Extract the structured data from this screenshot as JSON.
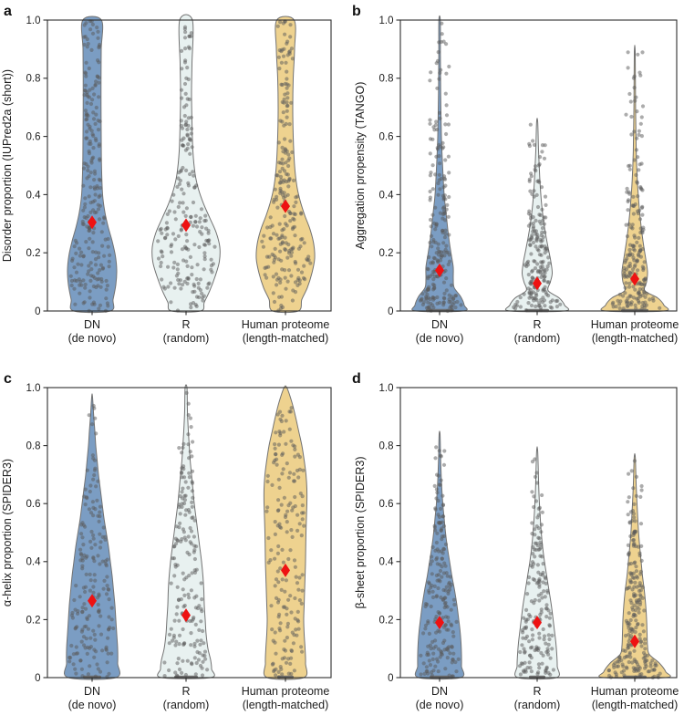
{
  "figure": {
    "background": "#ffffff",
    "accent_colors": {
      "mean_marker": "#ee1212",
      "point": "#5a5a5a",
      "violin_outline": "#737373",
      "axis": "#2e2e2e"
    }
  },
  "chart_data": [
    {
      "type": "violin",
      "panel": "a",
      "ylabel": "Disorder proportion (IUPred2a (short))",
      "ylim": [
        0,
        1.0
      ],
      "yticks": [
        0,
        0.2,
        0.4,
        0.6,
        0.8,
        1.0
      ],
      "ytick_labels": [
        "0",
        "0.2",
        "0.4",
        "0.6",
        "0.8",
        "1.0"
      ],
      "grid": false,
      "legend": "none",
      "categories": [
        [
          "DN",
          "(de novo)"
        ],
        [
          "R",
          "(random)"
        ],
        [
          "Human proteome",
          "(length-matched)"
        ]
      ],
      "series": [
        {
          "name": "DN (de novo)",
          "color": "#7b9dc3",
          "mean": 0.305,
          "min": 0,
          "max": 1.0,
          "n_points": 235,
          "zero_bar_halfwidth": 0,
          "jitter_min": 5,
          "density": [
            [
              0,
              20
            ],
            [
              0.04,
              23
            ],
            [
              0.09,
              26
            ],
            [
              0.14,
              27
            ],
            [
              0.19,
              25.5
            ],
            [
              0.24,
              22
            ],
            [
              0.29,
              17.5
            ],
            [
              0.34,
              14
            ],
            [
              0.4,
              11.5
            ],
            [
              0.5,
              10.3
            ],
            [
              0.6,
              10
            ],
            [
              0.7,
              9.8
            ],
            [
              0.8,
              9.8
            ],
            [
              0.9,
              10
            ],
            [
              1.0,
              10.2
            ]
          ]
        },
        {
          "name": "R (random)",
          "color": "#e8f1f0",
          "mean": 0.295,
          "min": 0,
          "max": 1.0,
          "n_points": 215,
          "zero_bar_halfwidth": 0,
          "jitter_min": 6,
          "density": [
            [
              0,
              16
            ],
            [
              0.03,
              20
            ],
            [
              0.07,
              26
            ],
            [
              0.12,
              32
            ],
            [
              0.17,
              36.5
            ],
            [
              0.22,
              37
            ],
            [
              0.27,
              33
            ],
            [
              0.32,
              26
            ],
            [
              0.37,
              19
            ],
            [
              0.42,
              13.5
            ],
            [
              0.47,
              10
            ],
            [
              0.55,
              7.5
            ],
            [
              0.65,
              6.5
            ],
            [
              0.75,
              6
            ],
            [
              0.85,
              6.5
            ],
            [
              1.0,
              7
            ]
          ]
        },
        {
          "name": "Human proteome (length-matched)",
          "color": "#eed28f",
          "mean": 0.36,
          "min": 0,
          "max": 1.0,
          "n_points": 225,
          "zero_bar_halfwidth": 0,
          "jitter_min": 5,
          "density": [
            [
              0,
              14
            ],
            [
              0.04,
              18
            ],
            [
              0.08,
              24
            ],
            [
              0.13,
              29
            ],
            [
              0.18,
              32
            ],
            [
              0.23,
              31
            ],
            [
              0.28,
              27
            ],
            [
              0.33,
              21
            ],
            [
              0.38,
              16
            ],
            [
              0.43,
              12.5
            ],
            [
              0.5,
              10
            ],
            [
              0.6,
              8.5
            ],
            [
              0.7,
              8
            ],
            [
              0.8,
              8.5
            ],
            [
              0.9,
              10
            ],
            [
              1.0,
              9.5
            ]
          ]
        }
      ]
    },
    {
      "type": "violin",
      "panel": "b",
      "ylabel": "Aggregation propensity (TANGO)",
      "ylim": [
        0,
        1.0
      ],
      "yticks": [
        0,
        0.2,
        0.4,
        0.6,
        0.8,
        1.0
      ],
      "ytick_labels": [
        "0",
        "0.2",
        "0.4",
        "0.6",
        "0.8",
        "1.0"
      ],
      "grid": false,
      "legend": "none",
      "categories": [
        [
          "DN",
          "(de novo)"
        ],
        [
          "R",
          "(random)"
        ],
        [
          "Human proteome",
          "(length-matched)"
        ]
      ],
      "series": [
        {
          "name": "DN (de novo)",
          "color": "#7b9dc3",
          "mean": 0.14,
          "min": 0,
          "max": 1.0,
          "n_points": 225,
          "zero_bar_halfwidth": 15,
          "jitter_min": 11,
          "density": [
            [
              0,
              26
            ],
            [
              0.02,
              27
            ],
            [
              0.05,
              23
            ],
            [
              0.08,
              16
            ],
            [
              0.11,
              15
            ],
            [
              0.15,
              15
            ],
            [
              0.19,
              13
            ],
            [
              0.23,
              11
            ],
            [
              0.28,
              9
            ],
            [
              0.34,
              7
            ],
            [
              0.4,
              5
            ],
            [
              0.5,
              3.3
            ],
            [
              0.6,
              2
            ],
            [
              0.75,
              1.2
            ],
            [
              0.88,
              0.9
            ],
            [
              1.0,
              0.8
            ]
          ]
        },
        {
          "name": "R (random)",
          "color": "#e8f1f0",
          "mean": 0.095,
          "min": 0,
          "max": 0.65,
          "n_points": 195,
          "zero_bar_halfwidth": 13,
          "jitter_min": 10,
          "density": [
            [
              0,
              30
            ],
            [
              0.02,
              30
            ],
            [
              0.045,
              24
            ],
            [
              0.07,
              12
            ],
            [
              0.1,
              14.5
            ],
            [
              0.13,
              16.5
            ],
            [
              0.17,
              15
            ],
            [
              0.21,
              12.5
            ],
            [
              0.26,
              9.5
            ],
            [
              0.31,
              7
            ],
            [
              0.38,
              4.5
            ],
            [
              0.46,
              2.8
            ],
            [
              0.55,
              1.5
            ],
            [
              0.65,
              0.6
            ]
          ]
        },
        {
          "name": "Human proteome (length-matched)",
          "color": "#eed28f",
          "mean": 0.11,
          "min": 0,
          "max": 0.89,
          "n_points": 205,
          "zero_bar_halfwidth": 15,
          "jitter_min": 10,
          "density": [
            [
              0,
              32
            ],
            [
              0.02,
              32
            ],
            [
              0.045,
              25
            ],
            [
              0.07,
              11
            ],
            [
              0.1,
              13
            ],
            [
              0.135,
              14
            ],
            [
              0.18,
              12
            ],
            [
              0.23,
              9.5
            ],
            [
              0.29,
              7
            ],
            [
              0.36,
              4.8
            ],
            [
              0.45,
              2.8
            ],
            [
              0.55,
              1.6
            ],
            [
              0.7,
              0.9
            ],
            [
              0.89,
              0.5
            ]
          ]
        }
      ]
    },
    {
      "type": "violin",
      "panel": "c",
      "ylabel": "α-helix proportion (SPIDER3)",
      "ylim": [
        0,
        1.0
      ],
      "yticks": [
        0,
        0.2,
        0.4,
        0.6,
        0.8,
        1.0
      ],
      "ytick_labels": [
        "0",
        "0.2",
        "0.4",
        "0.6",
        "0.8",
        "1.0"
      ],
      "grid": false,
      "legend": "none",
      "categories": [
        [
          "DN",
          "(de novo)"
        ],
        [
          "R",
          "(random)"
        ],
        [
          "Human proteome",
          "(length-matched)"
        ]
      ],
      "series": [
        {
          "name": "DN (de novo)",
          "color": "#7b9dc3",
          "mean": 0.265,
          "min": 0,
          "max": 0.97,
          "n_points": 185,
          "zero_bar_halfwidth": 10,
          "jitter_min": 6,
          "density": [
            [
              0,
              26
            ],
            [
              0.05,
              28
            ],
            [
              0.1,
              28
            ],
            [
              0.15,
              27
            ],
            [
              0.2,
              26
            ],
            [
              0.25,
              25
            ],
            [
              0.3,
              23.5
            ],
            [
              0.35,
              22
            ],
            [
              0.4,
              20
            ],
            [
              0.45,
              18
            ],
            [
              0.5,
              15.5
            ],
            [
              0.55,
              13
            ],
            [
              0.6,
              11
            ],
            [
              0.65,
              9
            ],
            [
              0.7,
              7
            ],
            [
              0.75,
              5.5
            ],
            [
              0.8,
              4
            ],
            [
              0.85,
              3
            ],
            [
              0.9,
              1.8
            ],
            [
              0.97,
              0.4
            ]
          ]
        },
        {
          "name": "R (random)",
          "color": "#e8f1f0",
          "mean": 0.215,
          "min": 0,
          "max": 1.0,
          "n_points": 185,
          "zero_bar_halfwidth": 13,
          "jitter_min": 8,
          "density": [
            [
              0,
              27
            ],
            [
              0.03,
              28
            ],
            [
              0.06,
              27
            ],
            [
              0.1,
              24
            ],
            [
              0.15,
              22
            ],
            [
              0.2,
              21
            ],
            [
              0.25,
              20
            ],
            [
              0.3,
              19.5
            ],
            [
              0.35,
              18.5
            ],
            [
              0.4,
              17
            ],
            [
              0.45,
              15
            ],
            [
              0.5,
              13
            ],
            [
              0.55,
              11
            ],
            [
              0.6,
              9
            ],
            [
              0.65,
              7.5
            ],
            [
              0.7,
              6
            ],
            [
              0.75,
              4.5
            ],
            [
              0.8,
              3.5
            ],
            [
              0.85,
              2.5
            ],
            [
              0.92,
              1.5
            ],
            [
              1.0,
              1
            ]
          ]
        },
        {
          "name": "Human proteome (length-matched)",
          "color": "#eed28f",
          "mean": 0.37,
          "min": 0,
          "max": 1.0,
          "n_points": 180,
          "zero_bar_halfwidth": 9,
          "jitter_min": 6,
          "density": [
            [
              0,
              20
            ],
            [
              0.05,
              22
            ],
            [
              0.1,
              21.5
            ],
            [
              0.15,
              20.5
            ],
            [
              0.2,
              20
            ],
            [
              0.25,
              20.5
            ],
            [
              0.3,
              21
            ],
            [
              0.35,
              21.5
            ],
            [
              0.4,
              22
            ],
            [
              0.5,
              22.5
            ],
            [
              0.6,
              23.5
            ],
            [
              0.65,
              23.5
            ],
            [
              0.7,
              22.5
            ],
            [
              0.75,
              20.5
            ],
            [
              0.8,
              18
            ],
            [
              0.85,
              14.5
            ],
            [
              0.9,
              11
            ],
            [
              0.95,
              7
            ],
            [
              1.0,
              1.5
            ]
          ]
        }
      ]
    },
    {
      "type": "violin",
      "panel": "d",
      "ylabel": "β-sheet proportion (SPIDER3)",
      "ylim": [
        0,
        1.0
      ],
      "yticks": [
        0,
        0.2,
        0.4,
        0.6,
        0.8,
        1.0
      ],
      "ytick_labels": [
        "0",
        "0.2",
        "0.4",
        "0.6",
        "0.8",
        "1.0"
      ],
      "grid": false,
      "legend": "none",
      "categories": [
        [
          "DN",
          "(de novo)"
        ],
        [
          "R",
          "(random)"
        ],
        [
          "Human proteome",
          "(length-matched)"
        ]
      ],
      "series": [
        {
          "name": "DN (de novo)",
          "color": "#7b9dc3",
          "mean": 0.19,
          "min": 0,
          "max": 0.84,
          "n_points": 205,
          "zero_bar_halfwidth": 11,
          "jitter_min": 6,
          "density": [
            [
              0,
              23
            ],
            [
              0.04,
              24
            ],
            [
              0.08,
              24
            ],
            [
              0.12,
              23.5
            ],
            [
              0.16,
              22.5
            ],
            [
              0.2,
              21
            ],
            [
              0.25,
              19
            ],
            [
              0.3,
              16.5
            ],
            [
              0.35,
              13.5
            ],
            [
              0.4,
              11
            ],
            [
              0.45,
              8.5
            ],
            [
              0.5,
              6.5
            ],
            [
              0.55,
              5
            ],
            [
              0.6,
              3.5
            ],
            [
              0.68,
              2
            ],
            [
              0.76,
              1.1
            ],
            [
              0.84,
              0.5
            ]
          ]
        },
        {
          "name": "R (random)",
          "color": "#e8f1f0",
          "mean": 0.19,
          "min": 0,
          "max": 0.78,
          "n_points": 175,
          "zero_bar_halfwidth": 9,
          "jitter_min": 6,
          "density": [
            [
              0,
              21
            ],
            [
              0.04,
              22
            ],
            [
              0.08,
              21.5
            ],
            [
              0.12,
              20.5
            ],
            [
              0.16,
              19
            ],
            [
              0.2,
              17.5
            ],
            [
              0.25,
              15.5
            ],
            [
              0.3,
              13
            ],
            [
              0.35,
              10.5
            ],
            [
              0.4,
              8
            ],
            [
              0.45,
              6
            ],
            [
              0.5,
              4.5
            ],
            [
              0.57,
              3
            ],
            [
              0.65,
              1.8
            ],
            [
              0.78,
              0.6
            ]
          ]
        },
        {
          "name": "Human proteome (length-matched)",
          "color": "#eed28f",
          "mean": 0.125,
          "min": 0,
          "max": 0.76,
          "n_points": 225,
          "zero_bar_halfwidth": 13,
          "jitter_min": 8,
          "density": [
            [
              0,
              34
            ],
            [
              0.02,
              34
            ],
            [
              0.05,
              27
            ],
            [
              0.08,
              16
            ],
            [
              0.11,
              14
            ],
            [
              0.15,
              13.5
            ],
            [
              0.2,
              13
            ],
            [
              0.25,
              12
            ],
            [
              0.3,
              10.5
            ],
            [
              0.35,
              8.5
            ],
            [
              0.4,
              7
            ],
            [
              0.45,
              5.5
            ],
            [
              0.5,
              4.2
            ],
            [
              0.58,
              2.8
            ],
            [
              0.66,
              1.6
            ],
            [
              0.76,
              0.6
            ]
          ]
        }
      ]
    }
  ]
}
